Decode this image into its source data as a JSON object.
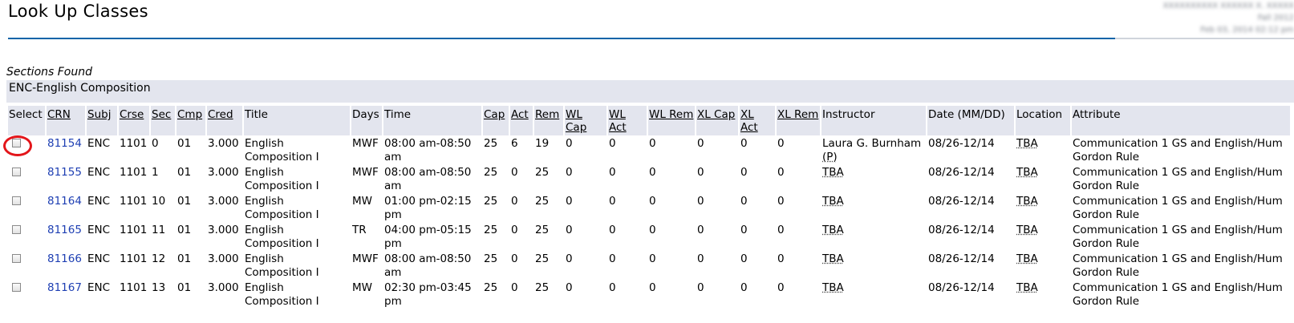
{
  "header": {
    "title": "Look Up Classes",
    "user_info": [
      "XXXXXXXXXX XXXXXX X. XXXXX",
      "Fall 2012",
      "Feb 03, 2014 02:12 pm"
    ]
  },
  "results": {
    "caption": "Sections Found",
    "subject": "ENC-English Composition",
    "columns": [
      {
        "label": "Select",
        "link": false
      },
      {
        "label": "CRN",
        "link": true
      },
      {
        "label": "Subj",
        "link": true
      },
      {
        "label": "Crse",
        "link": true
      },
      {
        "label": "Sec",
        "link": true
      },
      {
        "label": "Cmp",
        "link": true
      },
      {
        "label": "Cred",
        "link": true
      },
      {
        "label": "Title",
        "link": false
      },
      {
        "label": "Days",
        "link": false
      },
      {
        "label": "Time",
        "link": false
      },
      {
        "label": "Cap",
        "link": true
      },
      {
        "label": "Act",
        "link": true
      },
      {
        "label": "Rem",
        "link": true
      },
      {
        "label": "WL Cap",
        "link": true
      },
      {
        "label": "WL Act",
        "link": true
      },
      {
        "label": "WL Rem",
        "link": true
      },
      {
        "label": "XL Cap",
        "link": true
      },
      {
        "label": "XL Act",
        "link": true
      },
      {
        "label": "XL Rem",
        "link": true
      },
      {
        "label": "Instructor",
        "link": false
      },
      {
        "label": "Date (MM/DD)",
        "link": false
      },
      {
        "label": "Location",
        "link": false
      },
      {
        "label": "Attribute",
        "link": false
      }
    ],
    "rows": [
      {
        "crn": "81154",
        "subj": "ENC",
        "crse": "1101",
        "sec": "0",
        "cmp": "01",
        "cred": "3.000",
        "title": "English Composition I",
        "days": "MWF",
        "time": "08:00 am-08:50 am",
        "cap": "25",
        "act": "6",
        "rem": "19",
        "wl_cap": "0",
        "wl_act": "0",
        "wl_rem": "0",
        "xl_cap": "0",
        "xl_act": "0",
        "xl_rem": "0",
        "instructor": "Laura G. Burnham",
        "instructor_flag": "(P)",
        "date": "08/26-12/14",
        "location": "TBA",
        "attribute": "Communication 1 GS and English/Hum Gordon Rule",
        "highlighted": true
      },
      {
        "crn": "81155",
        "subj": "ENC",
        "crse": "1101",
        "sec": "1",
        "cmp": "01",
        "cred": "3.000",
        "title": "English Composition I",
        "days": "MWF",
        "time": "08:00 am-08:50 am",
        "cap": "25",
        "act": "0",
        "rem": "25",
        "wl_cap": "0",
        "wl_act": "0",
        "wl_rem": "0",
        "xl_cap": "0",
        "xl_act": "0",
        "xl_rem": "0",
        "instructor": "TBA",
        "instructor_flag": "",
        "date": "08/26-12/14",
        "location": "TBA",
        "attribute": "Communication 1 GS and English/Hum Gordon Rule",
        "highlighted": false
      },
      {
        "crn": "81164",
        "subj": "ENC",
        "crse": "1101",
        "sec": "10",
        "cmp": "01",
        "cred": "3.000",
        "title": "English Composition I",
        "days": "MW",
        "time": "01:00 pm-02:15 pm",
        "cap": "25",
        "act": "0",
        "rem": "25",
        "wl_cap": "0",
        "wl_act": "0",
        "wl_rem": "0",
        "xl_cap": "0",
        "xl_act": "0",
        "xl_rem": "0",
        "instructor": "TBA",
        "instructor_flag": "",
        "date": "08/26-12/14",
        "location": "TBA",
        "attribute": "Communication 1 GS and English/Hum Gordon Rule",
        "highlighted": false
      },
      {
        "crn": "81165",
        "subj": "ENC",
        "crse": "1101",
        "sec": "11",
        "cmp": "01",
        "cred": "3.000",
        "title": "English Composition I",
        "days": "TR",
        "time": "04:00 pm-05:15 pm",
        "cap": "25",
        "act": "0",
        "rem": "25",
        "wl_cap": "0",
        "wl_act": "0",
        "wl_rem": "0",
        "xl_cap": "0",
        "xl_act": "0",
        "xl_rem": "0",
        "instructor": "TBA",
        "instructor_flag": "",
        "date": "08/26-12/14",
        "location": "TBA",
        "attribute": "Communication 1 GS and English/Hum Gordon Rule",
        "highlighted": false
      },
      {
        "crn": "81166",
        "subj": "ENC",
        "crse": "1101",
        "sec": "12",
        "cmp": "01",
        "cred": "3.000",
        "title": "English Composition I",
        "days": "MWF",
        "time": "08:00 am-08:50 am",
        "cap": "25",
        "act": "0",
        "rem": "25",
        "wl_cap": "0",
        "wl_act": "0",
        "wl_rem": "0",
        "xl_cap": "0",
        "xl_act": "0",
        "xl_rem": "0",
        "instructor": "TBA",
        "instructor_flag": "",
        "date": "08/26-12/14",
        "location": "TBA",
        "attribute": "Communication 1 GS and English/Hum Gordon Rule",
        "highlighted": false
      },
      {
        "crn": "81167",
        "subj": "ENC",
        "crse": "1101",
        "sec": "13",
        "cmp": "01",
        "cred": "3.000",
        "title": "English Composition I",
        "days": "MW",
        "time": "02:30 pm-03:45 pm",
        "cap": "25",
        "act": "0",
        "rem": "25",
        "wl_cap": "0",
        "wl_act": "0",
        "wl_rem": "0",
        "xl_cap": "0",
        "xl_act": "0",
        "xl_rem": "0",
        "instructor": "TBA",
        "instructor_flag": "",
        "date": "08/26-12/14",
        "location": "TBA",
        "attribute": "Communication 1 GS and English/Hum Gordon Rule",
        "highlighted": false
      }
    ]
  },
  "colors": {
    "accent_rule": "#0a64a8",
    "header_bg": "#e3e5ee",
    "crn_link": "#1e3fb3",
    "highlight_circle": "#e3151a"
  }
}
